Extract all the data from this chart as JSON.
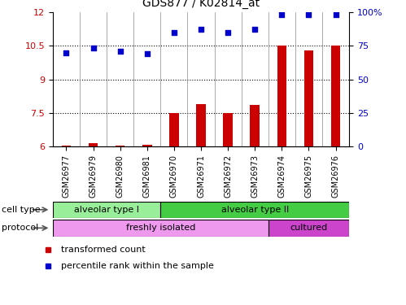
{
  "title": "GDS877 / K02814_at",
  "samples": [
    "GSM26977",
    "GSM26979",
    "GSM26980",
    "GSM26981",
    "GSM26970",
    "GSM26971",
    "GSM26972",
    "GSM26973",
    "GSM26974",
    "GSM26975",
    "GSM26976"
  ],
  "red_values": [
    6.05,
    6.15,
    6.05,
    6.08,
    7.5,
    7.9,
    7.5,
    7.85,
    10.5,
    10.3,
    10.5
  ],
  "blue_values": [
    10.2,
    10.4,
    10.25,
    10.15,
    11.1,
    11.25,
    11.1,
    11.25,
    11.9,
    11.9,
    11.9
  ],
  "ylim_left": [
    6,
    12
  ],
  "ylim_right": [
    0,
    100
  ],
  "yticks_left": [
    6,
    7.5,
    9,
    10.5,
    12
  ],
  "yticks_right": [
    0,
    25,
    50,
    75,
    100
  ],
  "cell_type_groups": [
    {
      "label": "alveolar type I",
      "start": 0,
      "end": 4,
      "color": "#99ee99"
    },
    {
      "label": "alveolar type II",
      "start": 4,
      "end": 11,
      "color": "#44cc44"
    }
  ],
  "protocol_groups": [
    {
      "label": "freshly isolated",
      "start": 0,
      "end": 8,
      "color": "#ee99ee"
    },
    {
      "label": "cultured",
      "start": 8,
      "end": 11,
      "color": "#cc44cc"
    }
  ],
  "red_color": "#cc0000",
  "blue_color": "#0000cc",
  "bar_width": 0.35,
  "legend_red": "transformed count",
  "legend_blue": "percentile rank within the sample",
  "background_color": "#ffffff",
  "plot_bg": "#ffffff",
  "tick_label_color_left": "#cc0000",
  "tick_label_color_right": "#0000cc",
  "cell_type_lighter": "#aaffaa",
  "cell_type_darker": "#55dd55",
  "protocol_lighter": "#ffaaff",
  "protocol_darker": "#dd55dd"
}
